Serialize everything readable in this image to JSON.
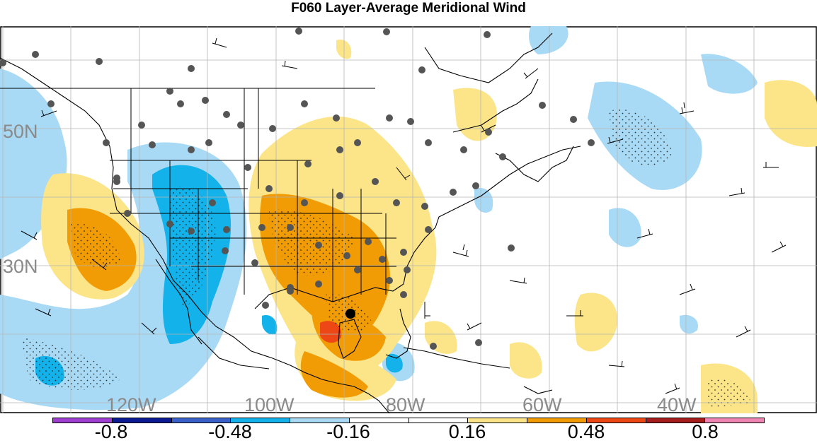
{
  "title": "F060 Layer-Average Meridional Wind",
  "map": {
    "latitude_labels": [
      "50N",
      "30N"
    ],
    "longitude_labels": [
      "120W",
      "100W",
      "80W",
      "60W",
      "40W"
    ],
    "marker": "black-dot-current-location"
  },
  "colorbar": {
    "bins": [
      {
        "color": "#9e3fd1"
      },
      {
        "color": "#0c1b93"
      },
      {
        "color": "#3a61c9"
      },
      {
        "color": "#13b2ea"
      },
      {
        "color": "#a9daf5"
      },
      {
        "color": "#ffffff"
      },
      {
        "color": "#ffffff"
      },
      {
        "color": "#fbe588"
      },
      {
        "color": "#f19b05"
      },
      {
        "color": "#ec4715"
      },
      {
        "color": "#a51e1d"
      },
      {
        "color": "#ee85b3"
      }
    ],
    "tick_labels": [
      "-0.8",
      "-0.48",
      "-0.16",
      "0.16",
      "0.48",
      "0.8"
    ]
  },
  "colors": {
    "positive_light": "#fbe588",
    "positive_strong": "#f19b05",
    "positive_max": "#ec4715",
    "negative_light": "#a9daf5",
    "negative_strong": "#13b2ea",
    "station_dot": "#555555"
  }
}
